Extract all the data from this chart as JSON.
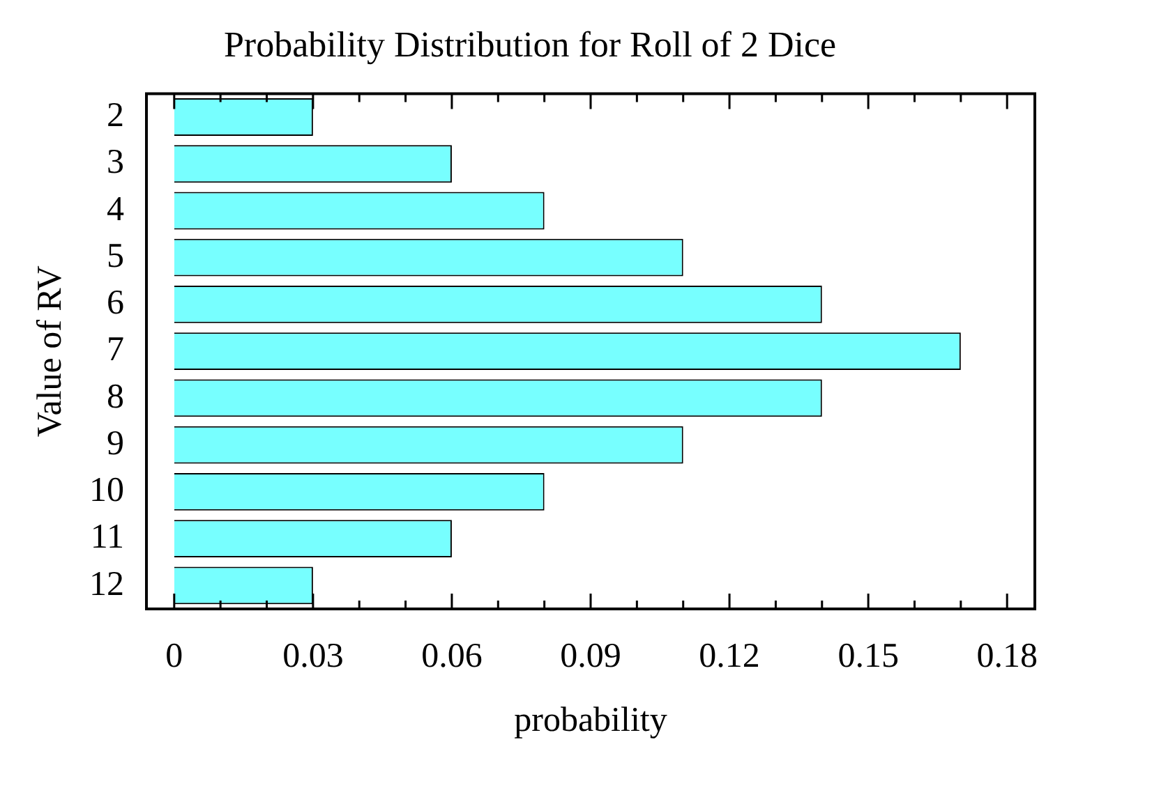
{
  "chart_data": {
    "type": "bar",
    "orientation": "horizontal",
    "title": "Probability Distribution for Roll of 2 Dice",
    "xlabel": "probability",
    "ylabel": "Value of RV",
    "categories": [
      "2",
      "3",
      "4",
      "5",
      "6",
      "7",
      "8",
      "9",
      "10",
      "11",
      "12"
    ],
    "values": [
      0.03,
      0.06,
      0.08,
      0.11,
      0.14,
      0.17,
      0.14,
      0.11,
      0.08,
      0.06,
      0.03
    ],
    "color": "#77ffff",
    "xlim": [
      -0.006,
      0.186
    ],
    "xticks": [
      0,
      {
        "value": 0.01,
        "label": null
      },
      {
        "value": 0.02,
        "label": null
      },
      0.03,
      {
        "value": 0.04,
        "label": null
      },
      {
        "value": 0.05,
        "label": null
      },
      0.06,
      {
        "value": 0.07,
        "label": null
      },
      {
        "value": 0.08,
        "label": null
      },
      0.09,
      {
        "value": 0.1,
        "label": null
      },
      {
        "value": 0.11,
        "label": null
      },
      0.12,
      {
        "value": 0.13,
        "label": null
      },
      {
        "value": 0.14,
        "label": null
      },
      0.15,
      {
        "value": 0.16,
        "label": null
      },
      {
        "value": 0.17,
        "label": null
      },
      0.18
    ],
    "grid": false,
    "legend": false
  }
}
